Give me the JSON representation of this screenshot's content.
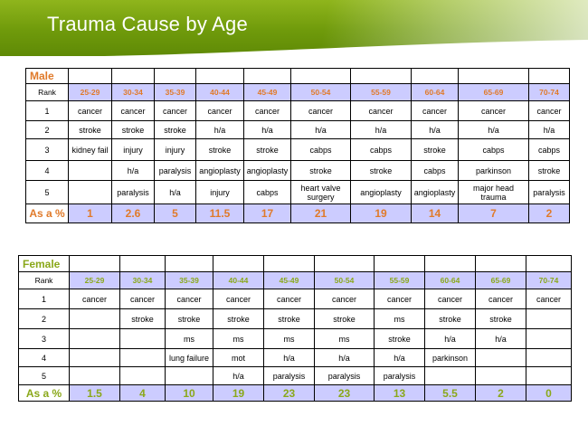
{
  "title": "Trauma Cause by Age",
  "age_groups": [
    "25-29",
    "30-34",
    "35-39",
    "40-44",
    "45-49",
    "50-54",
    "55-59",
    "60-64",
    "65-69",
    "70-74"
  ],
  "rank_label": "Rank",
  "pct_label": "As a %",
  "male": {
    "label": "Male",
    "rows": [
      {
        "rank": "1",
        "cells": [
          "cancer",
          "cancer",
          "cancer",
          "cancer",
          "cancer",
          "cancer",
          "cancer",
          "cancer",
          "cancer",
          "cancer"
        ]
      },
      {
        "rank": "2",
        "cells": [
          "stroke",
          "stroke",
          "stroke",
          "h/a",
          "h/a",
          "h/a",
          "h/a",
          "h/a",
          "h/a",
          "h/a"
        ]
      },
      {
        "rank": "3",
        "cells": [
          "kidney fail",
          "injury",
          "injury",
          "stroke",
          "stroke",
          "cabps",
          "cabps",
          "stroke",
          "cabps",
          "cabps"
        ]
      },
      {
        "rank": "4",
        "cells": [
          "",
          "h/a",
          "paralysis",
          "angioplasty",
          "angioplasty",
          "stroke",
          "stroke",
          "cabps",
          "parkinson",
          "stroke"
        ]
      },
      {
        "rank": "5",
        "cells": [
          "",
          "paralysis",
          "h/a",
          "injury",
          "cabps",
          "heart valve surgery",
          "angioplasty",
          "angioplasty",
          "major head trauma",
          "paralysis"
        ]
      }
    ],
    "percent": [
      "1",
      "2.6",
      "5",
      "11.5",
      "17",
      "21",
      "19",
      "14",
      "7",
      "2"
    ]
  },
  "female": {
    "label": "Female",
    "rows": [
      {
        "rank": "1",
        "cells": [
          "cancer",
          "cancer",
          "cancer",
          "cancer",
          "cancer",
          "cancer",
          "cancer",
          "cancer",
          "cancer",
          "cancer"
        ]
      },
      {
        "rank": "2",
        "cells": [
          "",
          "stroke",
          "stroke",
          "stroke",
          "stroke",
          "stroke",
          "ms",
          "stroke",
          "stroke",
          ""
        ]
      },
      {
        "rank": "3",
        "cells": [
          "",
          "",
          "ms",
          "ms",
          "ms",
          "ms",
          "stroke",
          "h/a",
          "h/a",
          ""
        ]
      },
      {
        "rank": "4",
        "cells": [
          "",
          "",
          "lung failure",
          "mot",
          "h/a",
          "h/a",
          "h/a",
          "parkinson",
          "",
          ""
        ]
      },
      {
        "rank": "5",
        "cells": [
          "",
          "",
          "",
          "h/a",
          "paralysis",
          "paralysis",
          "paralysis",
          "",
          "",
          ""
        ]
      }
    ],
    "percent": [
      "1.5",
      "4",
      "10",
      "19",
      "23",
      "23",
      "13",
      "5.5",
      "2",
      "0"
    ]
  }
}
